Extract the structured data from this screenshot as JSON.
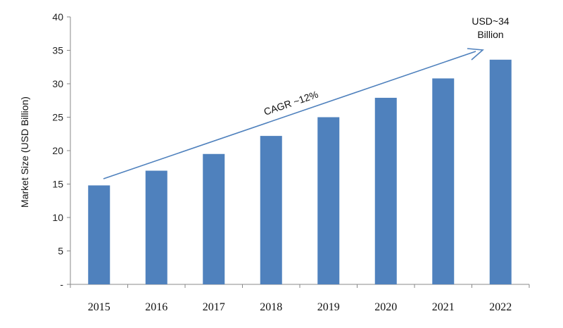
{
  "chart_data": {
    "type": "bar",
    "categories": [
      "2015",
      "2016",
      "2017",
      "2018",
      "2019",
      "2020",
      "2021",
      "2022"
    ],
    "values": [
      14.8,
      17.0,
      19.5,
      22.2,
      25.0,
      27.9,
      30.8,
      33.6
    ],
    "ylabel": "Market Size (USD Billion)",
    "xlabel": "",
    "ylim": [
      0,
      40
    ],
    "yticks": [
      "-",
      "5",
      "10",
      "15",
      "20",
      "25",
      "30",
      "35",
      "40"
    ],
    "grid": false,
    "legend": "none",
    "bar_color": "#4F81BD",
    "annotations": {
      "cagr": "CAGR ~12%",
      "final_line1": "USD~34",
      "final_line2": "Billion"
    }
  }
}
